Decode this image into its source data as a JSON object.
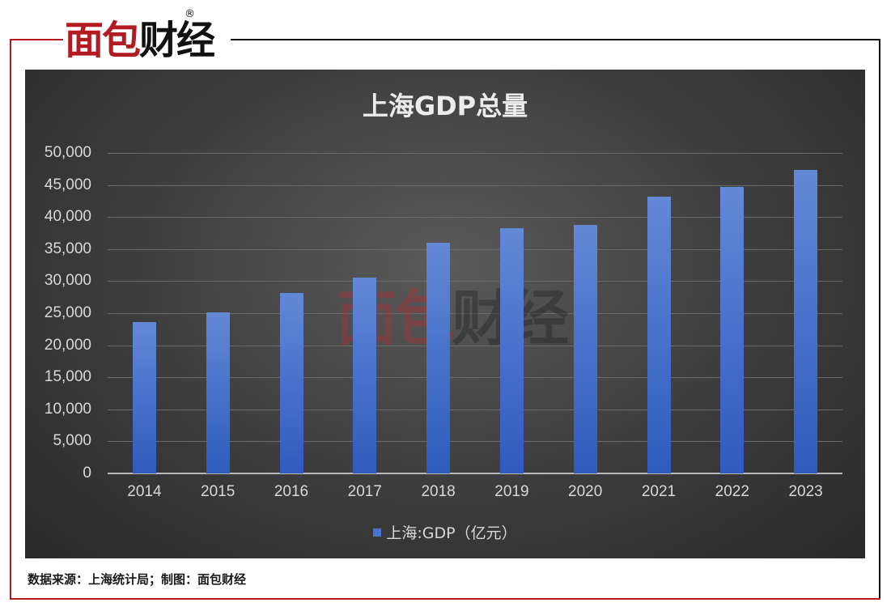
{
  "brand": {
    "logo_part1": "面包",
    "logo_part2": "财经",
    "registered": "®",
    "accent_color": "#b31b22"
  },
  "chart_data": {
    "type": "bar",
    "title": "上海GDP总量",
    "categories": [
      "2014",
      "2015",
      "2016",
      "2017",
      "2018",
      "2019",
      "2020",
      "2021",
      "2022",
      "2023"
    ],
    "series": [
      {
        "name": "上海:GDP（亿元）",
        "color": "#4a74cc",
        "values": [
          23600,
          25100,
          28200,
          30600,
          36000,
          38200,
          38800,
          43200,
          44700,
          47300
        ]
      }
    ],
    "ylim": [
      0,
      50000
    ],
    "yticks": [
      "0",
      "5,000",
      "10,000",
      "15,000",
      "20,000",
      "25,000",
      "30,000",
      "35,000",
      "40,000",
      "45,000",
      "50,000"
    ],
    "ytick_values": [
      0,
      5000,
      10000,
      15000,
      20000,
      25000,
      30000,
      35000,
      40000,
      45000,
      50000
    ],
    "grid": true,
    "legend_position": "bottom"
  },
  "footer": {
    "source": "数据来源：上海统计局；制图：面包财经"
  }
}
